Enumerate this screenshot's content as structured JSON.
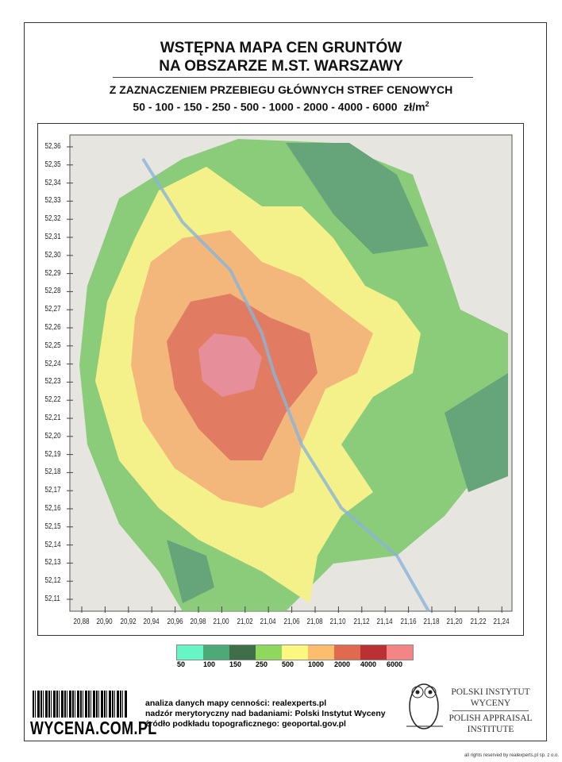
{
  "title": {
    "line1": "WSTĘPNA MAPA CEN GRUNTÓW",
    "line2": "NA OBSZARZE M.ST. WARSZAWY"
  },
  "subtitle": {
    "line1": "Z ZAZNACZENIEM PRZEBIEGU GŁÓWNYCH STREF CENOWYCH",
    "line2": "50 - 100 - 150 - 250 - 500 - 1000 - 2000 - 4000 - 6000",
    "unit": "zł/m",
    "unit_sup": "2"
  },
  "map": {
    "y_ticks": [
      "52,36",
      "52,35",
      "52,34",
      "52,33",
      "52,32",
      "52,31",
      "52,30",
      "52,29",
      "52,28",
      "52,27",
      "52,26",
      "52,25",
      "52,24",
      "52,23",
      "52,22",
      "52,21",
      "52,20",
      "52,19",
      "52,18",
      "52,17",
      "52,16",
      "52,15",
      "52,14",
      "52,13",
      "52,12",
      "52,11"
    ],
    "x_ticks": [
      "20,88",
      "20,90",
      "20,92",
      "20,94",
      "20,96",
      "20,98",
      "21,00",
      "21,02",
      "21,04",
      "21,06",
      "21,08",
      "21,10",
      "21,12",
      "21,14",
      "21,16",
      "21,18",
      "21,20",
      "21,22",
      "21,24"
    ]
  },
  "legend": [
    {
      "label": "50",
      "color": "#66f5c4"
    },
    {
      "label": "100",
      "color": "#4caa78"
    },
    {
      "label": "150",
      "color": "#3f6f48"
    },
    {
      "label": "250",
      "color": "#8fd85e"
    },
    {
      "label": "500",
      "color": "#fcf77e"
    },
    {
      "label": "1000",
      "color": "#fcbd6c"
    },
    {
      "label": "2000",
      "color": "#e06a4e"
    },
    {
      "label": "4000",
      "color": "#bb3033"
    },
    {
      "label": "6000",
      "color": "#f58585"
    }
  ],
  "footer": {
    "brand": "WYCENA.COM.PL",
    "credits": [
      "analiza danych mapy cenności: realexperts.pl",
      "nadzór merytoryczny nad badaniami: Polski Instytut Wyceny",
      "źródło podkładu topograficznego: geoportal.gov.pl"
    ],
    "institute": {
      "pl1": "POLSKI INSTYTUT",
      "pl2": "WYCENY",
      "en1": "POLISH APPRAISAL",
      "en2": "INSTITUTE"
    },
    "copyright": "all rights reserved by realexperts.pl sp. z o.o."
  }
}
